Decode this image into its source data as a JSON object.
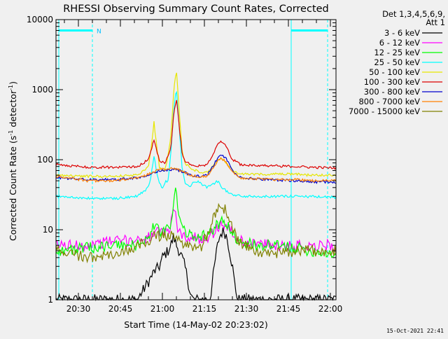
{
  "chart_data": {
    "type": "line",
    "title": "RHESSI Observing Summary Count Rates, Corrected",
    "xlabel": "Start Time (14-May-02 20:23:02)",
    "ylabel": "Corrected Count Rate (s",
    "ylabel_sup": "-1",
    "ylabel_mid": " detector",
    "ylabel_sup2": "-1",
    "ylabel_end": ")",
    "y_scale": "log",
    "ylim": [
      1,
      10000
    ],
    "y_ticks": [
      1,
      10,
      100,
      1000,
      10000
    ],
    "y_tick_labels": [
      "1",
      "10",
      "100",
      "1000",
      "10000"
    ],
    "xlim_min": [
      -1,
      99
    ],
    "x_ticks_min": [
      7,
      22,
      37,
      52,
      67,
      82,
      97
    ],
    "x_tick_labels": [
      "20:30",
      "20:45",
      "21:00",
      "21:15",
      "21:30",
      "21:45",
      "22:00"
    ],
    "grid": false,
    "legend_position": "right",
    "legend_header": [
      "Det 1,3,4,5,6,9,",
      "Att 1"
    ],
    "annotations": [
      {
        "text": "N",
        "x_min": 13.5
      }
    ],
    "attenuator_state_level": 7000,
    "attenuator_segments_min": [
      [
        0,
        12
      ],
      [
        83,
        96
      ]
    ],
    "vlines_solid_min": [
      0,
      83
    ],
    "vlines_dashed_min": [
      12,
      96
    ],
    "series": [
      {
        "name": "3 - 6 keV",
        "color": "#000000",
        "points": [
          [
            0,
            1
          ],
          [
            28,
            1
          ],
          [
            32,
            1.8
          ],
          [
            34,
            2.5
          ],
          [
            36,
            3
          ],
          [
            37,
            4
          ],
          [
            38,
            4.5
          ],
          [
            39,
            5
          ],
          [
            40,
            6
          ],
          [
            41,
            8
          ],
          [
            42,
            6
          ],
          [
            43,
            5
          ],
          [
            44,
            4
          ],
          [
            45,
            3
          ],
          [
            46,
            2
          ],
          [
            47,
            1.2
          ],
          [
            48,
            1
          ],
          [
            54,
            1
          ],
          [
            55,
            2
          ],
          [
            56,
            4
          ],
          [
            57,
            7
          ],
          [
            58,
            9
          ],
          [
            59,
            9.5
          ],
          [
            60,
            8
          ],
          [
            61,
            5
          ],
          [
            62,
            3
          ],
          [
            63,
            1.5
          ],
          [
            64,
            1
          ],
          [
            99,
            1
          ]
        ]
      },
      {
        "name": "6 - 12 keV",
        "color": "#ff00ff",
        "points": [
          [
            0,
            6
          ],
          [
            10,
            6
          ],
          [
            15,
            6.5
          ],
          [
            20,
            7
          ],
          [
            25,
            7
          ],
          [
            30,
            7.5
          ],
          [
            33,
            8
          ],
          [
            35,
            9
          ],
          [
            37,
            9
          ],
          [
            39,
            10
          ],
          [
            40,
            12
          ],
          [
            41,
            22
          ],
          [
            42,
            13
          ],
          [
            43,
            9
          ],
          [
            45,
            8
          ],
          [
            50,
            7.5
          ],
          [
            54,
            8
          ],
          [
            56,
            10
          ],
          [
            58,
            12
          ],
          [
            60,
            11.5
          ],
          [
            62,
            9
          ],
          [
            64,
            7
          ],
          [
            70,
            6.5
          ],
          [
            75,
            6
          ],
          [
            85,
            6
          ],
          [
            90,
            6
          ],
          [
            99,
            6
          ]
        ]
      },
      {
        "name": "12 - 25 keV",
        "color": "#00ff00",
        "points": [
          [
            0,
            5
          ],
          [
            10,
            5.5
          ],
          [
            20,
            6
          ],
          [
            28,
            6
          ],
          [
            32,
            8
          ],
          [
            34,
            11
          ],
          [
            35,
            12
          ],
          [
            36,
            9
          ],
          [
            38,
            9.5
          ],
          [
            40,
            11
          ],
          [
            41,
            25
          ],
          [
            42,
            38
          ],
          [
            43,
            14
          ],
          [
            45,
            9
          ],
          [
            50,
            8
          ],
          [
            54,
            9
          ],
          [
            56,
            11
          ],
          [
            58,
            13
          ],
          [
            60,
            12
          ],
          [
            62,
            9
          ],
          [
            64,
            7
          ],
          [
            70,
            6
          ],
          [
            75,
            6
          ],
          [
            85,
            5.5
          ],
          [
            90,
            5
          ],
          [
            99,
            4.5
          ]
        ]
      },
      {
        "name": "25 - 50 keV",
        "color": "#00ffff",
        "points": [
          [
            0,
            30
          ],
          [
            10,
            28
          ],
          [
            20,
            28
          ],
          [
            28,
            30
          ],
          [
            32,
            40
          ],
          [
            33,
            60
          ],
          [
            34,
            115
          ],
          [
            35,
            65
          ],
          [
            36,
            45
          ],
          [
            37,
            40
          ],
          [
            38,
            48
          ],
          [
            39,
            50
          ],
          [
            40,
            120
          ],
          [
            41,
            500
          ],
          [
            42,
            1050
          ],
          [
            43,
            300
          ],
          [
            44,
            80
          ],
          [
            45,
            48
          ],
          [
            47,
            42
          ],
          [
            48,
            50
          ],
          [
            50,
            48
          ],
          [
            53,
            40
          ],
          [
            55,
            45
          ],
          [
            57,
            50
          ],
          [
            58,
            42
          ],
          [
            60,
            35
          ],
          [
            62,
            32
          ],
          [
            65,
            30
          ],
          [
            75,
            30
          ],
          [
            85,
            30
          ],
          [
            99,
            29
          ]
        ]
      },
      {
        "name": "50 - 100 keV",
        "color": "#e6e600",
        "points": [
          [
            0,
            60
          ],
          [
            10,
            58
          ],
          [
            20,
            58
          ],
          [
            28,
            60
          ],
          [
            32,
            80
          ],
          [
            33,
            150
          ],
          [
            34,
            350
          ],
          [
            35,
            150
          ],
          [
            36,
            75
          ],
          [
            38,
            70
          ],
          [
            40,
            200
          ],
          [
            41,
            900
          ],
          [
            42,
            2000
          ],
          [
            43,
            500
          ],
          [
            44,
            140
          ],
          [
            45,
            90
          ],
          [
            47,
            75
          ],
          [
            50,
            68
          ],
          [
            53,
            65
          ],
          [
            55,
            80
          ],
          [
            57,
            100
          ],
          [
            58,
            105
          ],
          [
            60,
            90
          ],
          [
            62,
            70
          ],
          [
            65,
            62
          ],
          [
            75,
            62
          ],
          [
            85,
            62
          ],
          [
            90,
            60
          ],
          [
            99,
            60
          ]
        ]
      },
      {
        "name": "100 - 300 keV",
        "color": "#dd0000",
        "points": [
          [
            0,
            85
          ],
          [
            10,
            78
          ],
          [
            20,
            78
          ],
          [
            28,
            80
          ],
          [
            32,
            100
          ],
          [
            33,
            140
          ],
          [
            34,
            190
          ],
          [
            35,
            135
          ],
          [
            36,
            95
          ],
          [
            38,
            90
          ],
          [
            40,
            140
          ],
          [
            41,
            450
          ],
          [
            42,
            750
          ],
          [
            43,
            300
          ],
          [
            44,
            130
          ],
          [
            45,
            95
          ],
          [
            47,
            85
          ],
          [
            50,
            82
          ],
          [
            53,
            85
          ],
          [
            55,
            120
          ],
          [
            57,
            175
          ],
          [
            58,
            185
          ],
          [
            60,
            150
          ],
          [
            62,
            100
          ],
          [
            65,
            85
          ],
          [
            75,
            82
          ],
          [
            85,
            80
          ],
          [
            90,
            78
          ],
          [
            99,
            76
          ]
        ]
      },
      {
        "name": "300 - 800 keV",
        "color": "#0000cc",
        "points": [
          [
            0,
            55
          ],
          [
            10,
            52
          ],
          [
            20,
            52
          ],
          [
            28,
            55
          ],
          [
            32,
            60
          ],
          [
            34,
            65
          ],
          [
            36,
            70
          ],
          [
            40,
            72
          ],
          [
            42,
            72
          ],
          [
            44,
            68
          ],
          [
            47,
            60
          ],
          [
            50,
            58
          ],
          [
            53,
            60
          ],
          [
            55,
            80
          ],
          [
            57,
            110
          ],
          [
            58,
            120
          ],
          [
            60,
            100
          ],
          [
            62,
            70
          ],
          [
            65,
            55
          ],
          [
            75,
            52
          ],
          [
            85,
            50
          ],
          [
            90,
            48
          ],
          [
            99,
            48
          ]
        ]
      },
      {
        "name": "800 - 7000 keV",
        "color": "#ff8000",
        "points": [
          [
            0,
            58
          ],
          [
            10,
            50
          ],
          [
            20,
            50
          ],
          [
            28,
            55
          ],
          [
            32,
            62
          ],
          [
            34,
            68
          ],
          [
            36,
            72
          ],
          [
            40,
            75
          ],
          [
            42,
            74
          ],
          [
            44,
            68
          ],
          [
            47,
            60
          ],
          [
            50,
            57
          ],
          [
            53,
            58
          ],
          [
            55,
            75
          ],
          [
            57,
            100
          ],
          [
            58,
            105
          ],
          [
            60,
            90
          ],
          [
            62,
            68
          ],
          [
            65,
            55
          ],
          [
            75,
            52
          ],
          [
            85,
            52
          ],
          [
            90,
            50
          ],
          [
            99,
            50
          ]
        ]
      },
      {
        "name": "7000 - 15000 keV",
        "color": "#808000",
        "points": [
          [
            0,
            5
          ],
          [
            10,
            4
          ],
          [
            20,
            4.2
          ],
          [
            28,
            6
          ],
          [
            32,
            7
          ],
          [
            34,
            8
          ],
          [
            37,
            8
          ],
          [
            40,
            8.5
          ],
          [
            42,
            8.5
          ],
          [
            43,
            7
          ],
          [
            45,
            6
          ],
          [
            50,
            5
          ],
          [
            54,
            10
          ],
          [
            56,
            18
          ],
          [
            58,
            22
          ],
          [
            60,
            18
          ],
          [
            62,
            11
          ],
          [
            64,
            7
          ],
          [
            70,
            5
          ],
          [
            75,
            4.5
          ],
          [
            85,
            5
          ],
          [
            90,
            5
          ],
          [
            99,
            5
          ]
        ]
      }
    ]
  },
  "footer_stamp": "15-Oct-2021 22:41"
}
